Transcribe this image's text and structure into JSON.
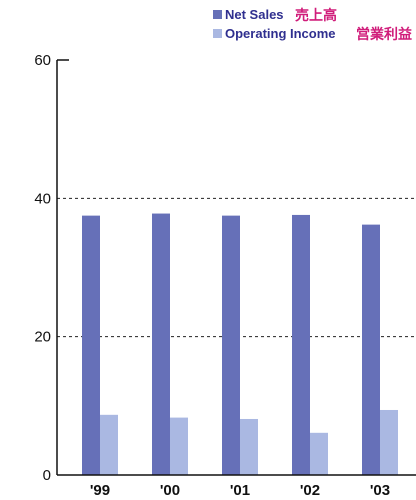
{
  "chart_data": {
    "type": "bar",
    "categories": [
      "'99",
      "'00",
      "'01",
      "'02",
      "'03"
    ],
    "series": [
      {
        "name": "Net Sales",
        "name_jp": "売上高",
        "color": "#6670b8",
        "values": [
          37.5,
          37.8,
          37.5,
          37.6,
          36.2
        ]
      },
      {
        "name": "Operating Income",
        "name_jp": "営業利益",
        "color": "#aab8e2",
        "values": [
          8.7,
          8.3,
          8.1,
          6.1,
          9.4
        ]
      }
    ],
    "yticks": [
      0,
      20,
      40,
      60
    ],
    "ylim": [
      0,
      60
    ],
    "grid": "dashed horizontal lines at 20 and 40",
    "legend_position": "top-right",
    "title": "",
    "xlabel": "",
    "ylabel": ""
  }
}
